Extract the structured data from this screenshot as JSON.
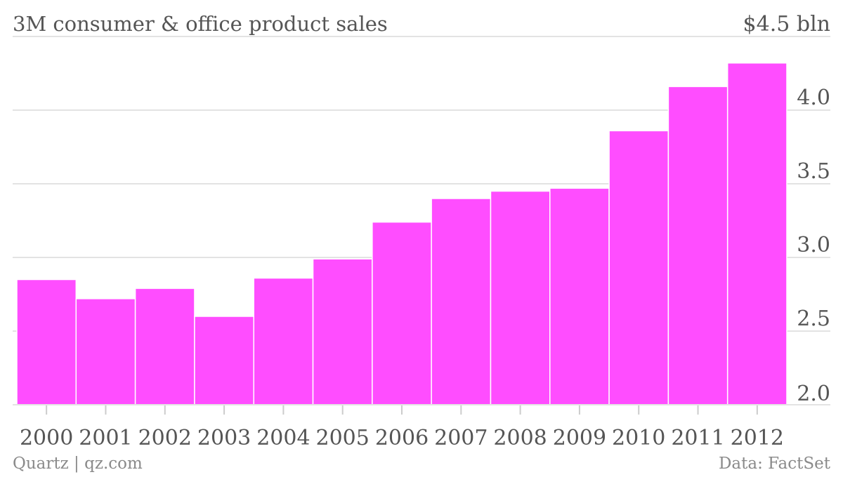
{
  "chart_data": {
    "type": "bar",
    "title": "3M consumer & office product sales",
    "y_unit_label": "$4.5 bln",
    "categories": [
      "2000",
      "2001",
      "2002",
      "2003",
      "2004",
      "2005",
      "2006",
      "2007",
      "2008",
      "2009",
      "2010",
      "2011",
      "2012"
    ],
    "series": [
      {
        "values": [
          2.85,
          2.72,
          2.79,
          2.6,
          2.86,
          2.99,
          3.24,
          3.4,
          3.45,
          3.47,
          3.86,
          4.16,
          4.32
        ]
      }
    ],
    "ylim": [
      2.0,
      4.5
    ],
    "yticks": [
      "2.0",
      "2.5",
      "3.0",
      "3.5",
      "4.0"
    ],
    "grid": true,
    "legend": "none",
    "bar_color": "#ff4dff",
    "source_left": "Quartz | qz.com",
    "source_right": "Data: FactSet"
  }
}
